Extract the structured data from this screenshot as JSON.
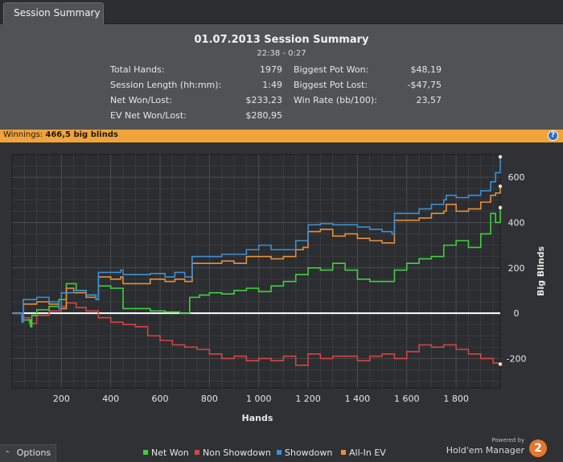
{
  "tab": {
    "label": "Session Summary"
  },
  "summary": {
    "title": "01.07.2013 Session Summary",
    "time_range": "22:38 - 0:27",
    "left": [
      {
        "label": "Total Hands:",
        "value": "1979"
      },
      {
        "label": "Session Length (hh:mm):",
        "value": "1:49"
      },
      {
        "label": "Net Won/Lost:",
        "value": "$233,23"
      },
      {
        "label": "EV Net Won/Lost:",
        "value": "$280,95"
      }
    ],
    "right": [
      {
        "label": "Biggest Pot Won:",
        "value": "$48,19"
      },
      {
        "label": "Biggest Pot Lost:",
        "value": "-$47,75"
      },
      {
        "label": "Win Rate (bb/100):",
        "value": "23,57"
      }
    ]
  },
  "winnings": {
    "label": "Winnings:",
    "value": "466,5 big blinds",
    "help_icon": "help-icon",
    "help_glyph": "?"
  },
  "chart_data": {
    "type": "line",
    "xlabel": "Hands",
    "ylabel": "Big Blinds",
    "xlim": [
      0,
      1979
    ],
    "ylim": [
      -330,
      700
    ],
    "x_ticks": [
      200,
      400,
      600,
      800,
      1000,
      1200,
      1400,
      1600,
      1800
    ],
    "x_tick_labels": [
      "200",
      "400",
      "600",
      "800",
      "1 000",
      "1 200",
      "1 400",
      "1 600",
      "1 800"
    ],
    "y_ticks": [
      600,
      400,
      200,
      0,
      -200
    ],
    "y_tick_labels": [
      "600",
      "400",
      "200",
      "0",
      "-200"
    ],
    "grid": true,
    "zero_line": true,
    "series": [
      {
        "name": "Net Won",
        "color": "#3fd13f",
        "x": [
          0,
          40,
          75,
          80,
          100,
          150,
          190,
          220,
          260,
          300,
          340,
          350,
          400,
          450,
          480,
          500,
          560,
          620,
          680,
          700,
          720,
          760,
          800,
          850,
          900,
          950,
          1000,
          1050,
          1100,
          1150,
          1200,
          1250,
          1300,
          1350,
          1400,
          1450,
          1500,
          1550,
          1600,
          1650,
          1700,
          1750,
          1800,
          1850,
          1900,
          1940,
          1960,
          1979
        ],
        "y": [
          0,
          -30,
          -60,
          -10,
          15,
          30,
          60,
          130,
          100,
          80,
          60,
          120,
          110,
          20,
          20,
          20,
          10,
          5,
          0,
          0,
          70,
          80,
          90,
          85,
          100,
          110,
          95,
          120,
          140,
          170,
          200,
          190,
          220,
          190,
          150,
          140,
          140,
          190,
          220,
          240,
          250,
          300,
          320,
          290,
          350,
          440,
          400,
          466
        ]
      },
      {
        "name": "Non Showdown",
        "color": "#d64545",
        "x": [
          0,
          40,
          70,
          100,
          150,
          200,
          220,
          260,
          300,
          350,
          400,
          450,
          500,
          550,
          600,
          650,
          700,
          750,
          800,
          850,
          900,
          950,
          1000,
          1050,
          1100,
          1150,
          1200,
          1250,
          1300,
          1350,
          1400,
          1450,
          1500,
          1550,
          1600,
          1650,
          1700,
          1750,
          1800,
          1850,
          1900,
          1950,
          1979
        ],
        "y": [
          0,
          -20,
          -45,
          -10,
          10,
          30,
          45,
          25,
          10,
          -20,
          -40,
          -50,
          -60,
          -100,
          -120,
          -140,
          -150,
          -160,
          -180,
          -200,
          -190,
          -210,
          -200,
          -210,
          -190,
          -230,
          -180,
          -200,
          -190,
          -190,
          -210,
          -190,
          -180,
          -200,
          -170,
          -140,
          -150,
          -140,
          -160,
          -180,
          -200,
          -220,
          -225
        ]
      },
      {
        "name": "Showdown",
        "color": "#3d8fd6",
        "x": [
          0,
          40,
          45,
          100,
          150,
          190,
          200,
          250,
          300,
          340,
          350,
          400,
          440,
          450,
          500,
          560,
          620,
          660,
          700,
          730,
          800,
          850,
          900,
          950,
          1000,
          1050,
          1100,
          1150,
          1180,
          1200,
          1250,
          1300,
          1350,
          1400,
          1450,
          1500,
          1540,
          1550,
          1600,
          1650,
          1700,
          1750,
          1760,
          1800,
          1850,
          1900,
          1940,
          1960,
          1979
        ],
        "y": [
          0,
          -40,
          60,
          70,
          50,
          20,
          90,
          100,
          80,
          60,
          180,
          180,
          190,
          170,
          170,
          175,
          160,
          180,
          160,
          250,
          250,
          260,
          260,
          280,
          300,
          280,
          280,
          320,
          320,
          390,
          395,
          390,
          390,
          380,
          370,
          360,
          350,
          440,
          440,
          460,
          480,
          500,
          520,
          510,
          520,
          540,
          580,
          620,
          690
        ]
      },
      {
        "name": "All-In EV",
        "color": "#e8903a",
        "x": [
          0,
          40,
          45,
          100,
          150,
          190,
          220,
          250,
          300,
          340,
          350,
          400,
          440,
          450,
          500,
          560,
          620,
          660,
          700,
          730,
          800,
          850,
          900,
          950,
          1000,
          1050,
          1100,
          1150,
          1180,
          1200,
          1250,
          1300,
          1350,
          1400,
          1450,
          1500,
          1540,
          1550,
          1600,
          1650,
          1700,
          1750,
          1760,
          1800,
          1850,
          1900,
          1940,
          1960,
          1979
        ],
        "y": [
          0,
          -30,
          40,
          50,
          40,
          20,
          110,
          90,
          70,
          60,
          160,
          150,
          160,
          130,
          130,
          150,
          140,
          150,
          140,
          220,
          220,
          230,
          220,
          250,
          250,
          240,
          250,
          280,
          290,
          360,
          370,
          340,
          350,
          330,
          320,
          310,
          310,
          410,
          410,
          420,
          440,
          450,
          480,
          450,
          460,
          490,
          520,
          530,
          560
        ]
      }
    ]
  },
  "options": {
    "label": "Options",
    "caret_glyph": "⌃"
  },
  "legend": [
    {
      "name": "Net Won",
      "color": "#3fd13f"
    },
    {
      "name": "Non Showdown",
      "color": "#d64545"
    },
    {
      "name": "Showdown",
      "color": "#3d8fd6"
    },
    {
      "name": "All-In EV",
      "color": "#e8903a"
    }
  ],
  "brand": {
    "powered_by": "Powered by",
    "name": "Hold'em Manager",
    "logo_glyph": "2"
  }
}
